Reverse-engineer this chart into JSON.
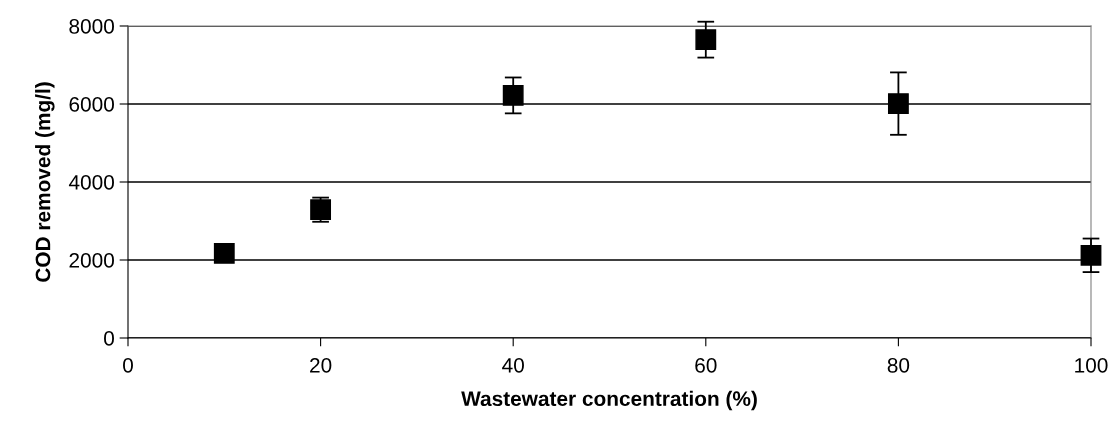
{
  "chart_data": {
    "type": "scatter",
    "xlabel": "Wastewater concentration (%)",
    "ylabel": "COD removed (mg/l)",
    "x": [
      10,
      20,
      40,
      60,
      80,
      100
    ],
    "values": [
      2170,
      3290,
      6220,
      7650,
      6010,
      2120
    ],
    "errors": [
      null,
      310,
      460,
      460,
      800,
      430
    ],
    "color": "#000000",
    "marker": "square",
    "xlim": [
      0,
      100
    ],
    "xticks": [
      0,
      20,
      40,
      60,
      80,
      100
    ],
    "ylim": [
      0,
      8000
    ],
    "yticks": [
      0,
      2000,
      4000,
      6000,
      8000
    ],
    "grid": "y",
    "legend": false
  }
}
